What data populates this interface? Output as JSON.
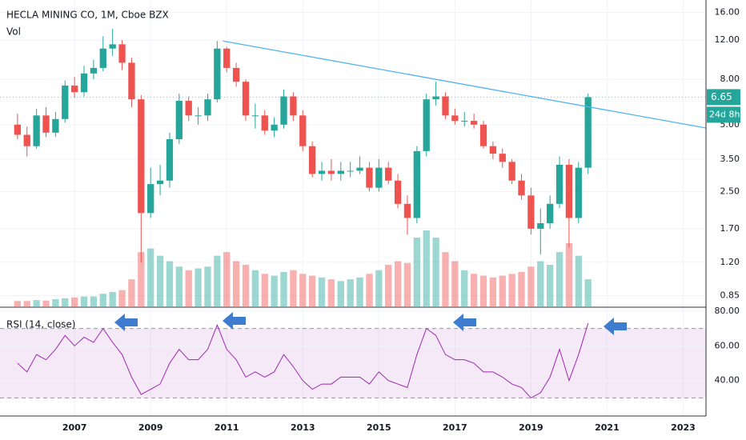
{
  "chart_data": [
    {
      "type": "candlestick",
      "title": "HECLA MINING CO, 1M, Cboe BZX",
      "x": [
        2005.5,
        2005.75,
        2006,
        2006.25,
        2006.5,
        2006.75,
        2007,
        2007.25,
        2007.5,
        2007.75,
        2008,
        2008.25,
        2008.5,
        2008.75,
        2009,
        2009.25,
        2009.5,
        2009.75,
        2010,
        2010.25,
        2010.5,
        2010.75,
        2011,
        2011.25,
        2011.5,
        2011.75,
        2012,
        2012.25,
        2012.5,
        2012.75,
        2013,
        2013.25,
        2013.5,
        2013.75,
        2014,
        2014.25,
        2014.5,
        2014.75,
        2015,
        2015.25,
        2015.5,
        2015.75,
        2016,
        2016.25,
        2016.5,
        2016.75,
        2017,
        2017.25,
        2017.5,
        2017.75,
        2018,
        2018.25,
        2018.5,
        2018.75,
        2019,
        2019.25,
        2019.5,
        2019.75,
        2020,
        2020.25,
        2020.5
      ],
      "open": [
        5.0,
        4.5,
        4.0,
        5.5,
        4.6,
        5.3,
        7.5,
        7.0,
        8.5,
        9.0,
        11.0,
        11.5,
        9.5,
        6.5,
        2.0,
        2.7,
        2.8,
        4.3,
        6.4,
        5.5,
        5.5,
        6.5,
        11.0,
        9.0,
        7.8,
        5.5,
        5.5,
        4.7,
        5.0,
        6.7,
        5.5,
        4.0,
        3.0,
        3.1,
        3.0,
        3.1,
        3.1,
        3.2,
        2.6,
        3.2,
        2.8,
        2.2,
        1.9,
        3.8,
        6.5,
        6.7,
        5.5,
        5.2,
        5.2,
        5.0,
        4.0,
        3.7,
        3.4,
        2.8,
        2.4,
        1.7,
        1.8,
        2.2,
        3.3,
        1.9,
        3.2
      ],
      "high": [
        5.6,
        4.9,
        5.9,
        6.0,
        5.7,
        7.9,
        8.2,
        9.2,
        9.8,
        12.5,
        13.5,
        12.0,
        10.0,
        6.8,
        3.2,
        3.3,
        4.6,
        6.9,
        6.7,
        6.0,
        6.9,
        11.9,
        11.2,
        9.5,
        8.0,
        6.2,
        5.8,
        5.4,
        7.2,
        7.0,
        5.8,
        4.2,
        3.4,
        3.5,
        3.4,
        3.4,
        3.6,
        3.4,
        3.5,
        3.4,
        3.0,
        2.4,
        4.0,
        6.9,
        7.8,
        7.0,
        5.9,
        5.7,
        5.6,
        5.2,
        4.2,
        3.9,
        3.5,
        3.0,
        2.6,
        2.1,
        2.4,
        3.6,
        3.5,
        3.4,
        6.9
      ],
      "low": [
        4.3,
        3.6,
        3.9,
        4.4,
        4.4,
        5.1,
        6.6,
        6.7,
        8.0,
        8.7,
        10.2,
        8.8,
        6.0,
        1.2,
        1.9,
        2.4,
        2.6,
        4.1,
        5.2,
        5.0,
        5.2,
        6.3,
        8.6,
        7.4,
        5.2,
        4.8,
        4.5,
        4.4,
        4.8,
        5.2,
        3.8,
        2.9,
        2.8,
        2.8,
        2.8,
        2.9,
        3.0,
        2.5,
        2.5,
        2.7,
        2.1,
        1.6,
        1.8,
        3.6,
        6.1,
        5.3,
        5.0,
        4.9,
        4.8,
        3.9,
        3.5,
        3.2,
        2.7,
        2.3,
        1.6,
        1.3,
        1.7,
        2.1,
        1.4,
        1.8,
        3.0
      ],
      "close": [
        4.5,
        4.0,
        5.5,
        4.6,
        5.3,
        7.5,
        7.0,
        8.5,
        9.0,
        11.0,
        11.5,
        9.5,
        6.5,
        2.0,
        2.7,
        2.8,
        4.3,
        6.4,
        5.5,
        5.5,
        6.5,
        11.0,
        9.0,
        7.8,
        5.5,
        5.5,
        4.7,
        5.0,
        6.7,
        5.5,
        4.0,
        3.0,
        3.1,
        3.0,
        3.1,
        3.1,
        3.2,
        2.6,
        3.2,
        2.8,
        2.2,
        1.9,
        3.8,
        6.5,
        6.7,
        5.5,
        5.2,
        5.2,
        5.0,
        4.0,
        3.7,
        3.4,
        2.8,
        2.4,
        1.7,
        1.8,
        2.2,
        3.3,
        1.9,
        3.2,
        6.65
      ],
      "up_color": "#26a69a",
      "down_color": "#ef5350",
      "volume": {
        "name": "Vol",
        "values": [
          30,
          30,
          35,
          32,
          40,
          45,
          50,
          55,
          55,
          70,
          80,
          90,
          150,
          300,
          320,
          280,
          250,
          220,
          200,
          210,
          220,
          280,
          300,
          250,
          230,
          200,
          180,
          170,
          190,
          200,
          180,
          170,
          160,
          150,
          140,
          150,
          160,
          180,
          200,
          230,
          250,
          240,
          380,
          420,
          380,
          300,
          250,
          200,
          180,
          170,
          160,
          170,
          180,
          190,
          220,
          250,
          230,
          300,
          350,
          280,
          150
        ]
      },
      "trendline": {
        "x": [
          2010.9,
          2023.6
        ],
        "values": [
          11.9,
          4.83
        ],
        "color": "#4fb3f0"
      },
      "xlim": [
        2005.04,
        2023.6
      ],
      "xticks": [
        2007,
        2009,
        2011,
        2013,
        2015,
        2017,
        2019,
        2021,
        2023
      ],
      "ylim": [
        0.76,
        18.2
      ],
      "log_scale": true,
      "grid": true,
      "yticks": [
        {
          "value": 0.85,
          "label": "0.85"
        },
        {
          "value": 1.2,
          "label": "1.20"
        },
        {
          "value": 1.7,
          "label": "1.70"
        },
        {
          "value": 2.5,
          "label": "2.50"
        },
        {
          "value": 3.5,
          "label": "3.50"
        },
        {
          "value": 5,
          "label": "5.00"
        },
        {
          "value": 8,
          "label": "8.00"
        },
        {
          "value": 12,
          "label": "12.00"
        },
        {
          "value": 16,
          "label": "16.00"
        }
      ],
      "last_price": {
        "value": 6.65,
        "label": "6.65"
      },
      "countdown": "24d 8h"
    },
    {
      "type": "line",
      "title": "RSI (14, close)",
      "color": "#9c27b0",
      "x": [
        2005.5,
        2005.75,
        2006,
        2006.25,
        2006.5,
        2006.75,
        2007,
        2007.25,
        2007.5,
        2007.75,
        2008,
        2008.25,
        2008.5,
        2008.75,
        2009,
        2009.25,
        2009.5,
        2009.75,
        2010,
        2010.25,
        2010.5,
        2010.75,
        2011,
        2011.25,
        2011.5,
        2011.75,
        2012,
        2012.25,
        2012.5,
        2012.75,
        2013,
        2013.25,
        2013.5,
        2013.75,
        2014,
        2014.25,
        2014.5,
        2014.75,
        2015,
        2015.25,
        2015.5,
        2015.75,
        2016,
        2016.25,
        2016.5,
        2016.75,
        2017,
        2017.25,
        2017.5,
        2017.75,
        2018,
        2018.25,
        2018.5,
        2018.75,
        2019,
        2019.25,
        2019.5,
        2019.75,
        2020,
        2020.25,
        2020.5
      ],
      "values": [
        50,
        45,
        55,
        52,
        58,
        66,
        60,
        65,
        62,
        70,
        62,
        55,
        42,
        32,
        35,
        38,
        50,
        58,
        52,
        52,
        58,
        72,
        58,
        52,
        42,
        45,
        42,
        45,
        55,
        48,
        40,
        35,
        38,
        38,
        42,
        42,
        42,
        38,
        45,
        40,
        38,
        36,
        55,
        70,
        66,
        55,
        52,
        52,
        50,
        45,
        45,
        42,
        38,
        36,
        30,
        33,
        42,
        58,
        40,
        55,
        73
      ],
      "xlim": [
        2005.04,
        2023.6
      ],
      "ylim": [
        19.6,
        81.8
      ],
      "yticks": [
        {
          "value": 40,
          "label": "40.00"
        },
        {
          "value": 60,
          "label": "60.00"
        },
        {
          "value": 80,
          "label": "80.00"
        }
      ],
      "band": [
        30,
        70
      ]
    }
  ]
}
